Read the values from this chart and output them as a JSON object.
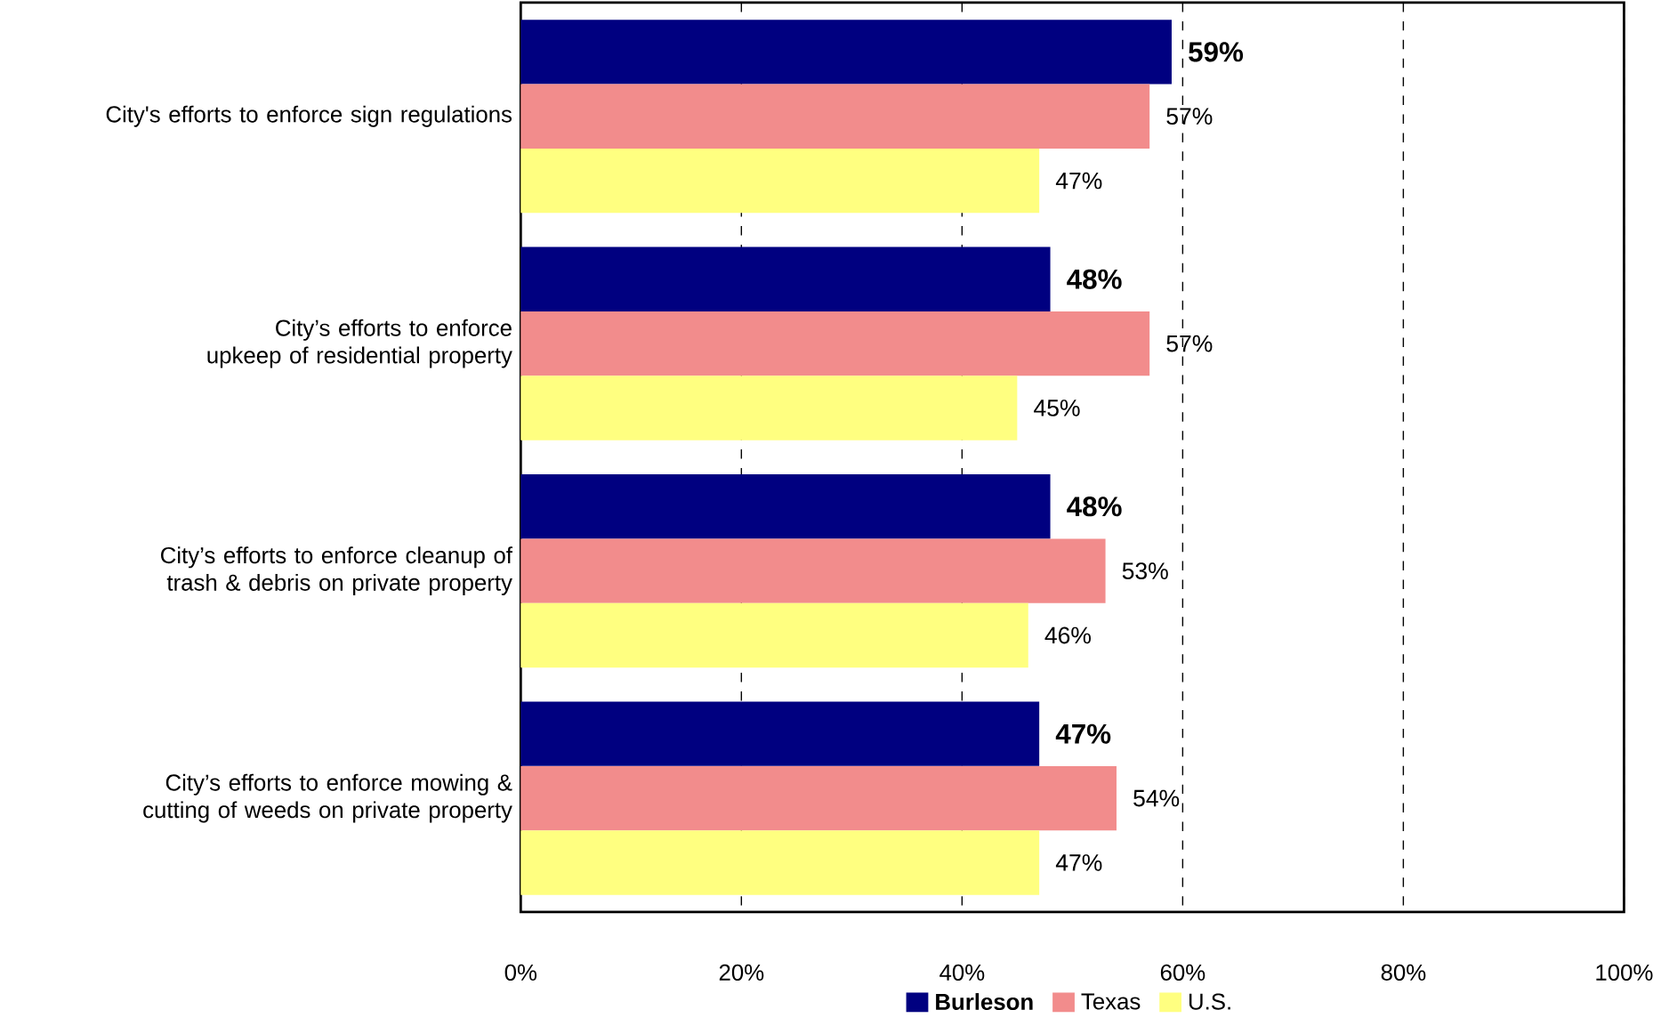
{
  "chart_data": {
    "type": "bar",
    "orientation": "horizontal",
    "categories": [
      "City's efforts to enforce sign regulations",
      "City’s efforts to enforce upkeep of residential property",
      "City’s efforts to enforce cleanup of trash & debris on private property",
      "City’s efforts to enforce mowing & cutting of weeds on private property"
    ],
    "series": [
      {
        "name": "Burleson",
        "color": "#000080",
        "values": [
          59,
          48,
          48,
          47
        ],
        "value_labels": [
          "59%",
          "48%",
          "48%",
          "47%"
        ]
      },
      {
        "name": "Texas",
        "color": "#f28c8c",
        "values": [
          57,
          57,
          53,
          54
        ],
        "value_labels": [
          "57%",
          "57%",
          "53%",
          "54%"
        ]
      },
      {
        "name": "U.S.",
        "color": "#ffff80",
        "values": [
          47,
          45,
          46,
          47
        ],
        "value_labels": [
          "47%",
          "45%",
          "46%",
          "47%"
        ]
      }
    ],
    "xlim": [
      0,
      100
    ],
    "xticks": [
      {
        "value": 0,
        "label": "0%"
      },
      {
        "value": 20,
        "label": "20%"
      },
      {
        "value": 40,
        "label": "40%"
      },
      {
        "value": 60,
        "label": "60%"
      },
      {
        "value": 80,
        "label": "80%"
      },
      {
        "value": 100,
        "label": "100%"
      }
    ],
    "grid": "x",
    "legend": "bottom"
  }
}
